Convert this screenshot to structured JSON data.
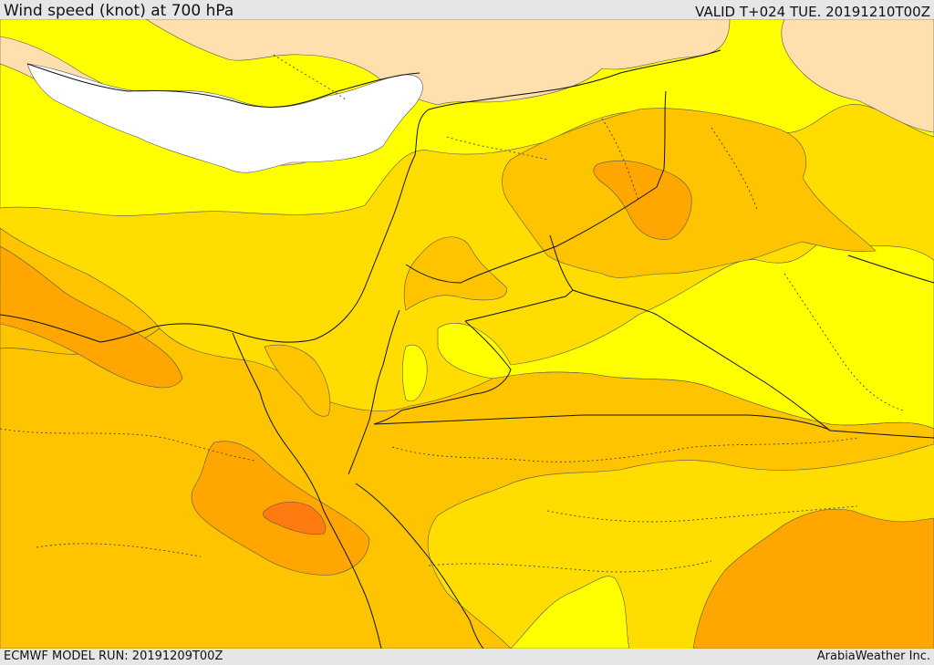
{
  "header": {
    "title": "Wind speed (knot) at 700 hPa",
    "valid": "VALID T+024 TUE. 20191210T00Z"
  },
  "footer": {
    "model_run": "ECMWF MODEL RUN: 20191209T00Z",
    "brand": "ArabiaWeather Inc."
  },
  "map": {
    "parameter": "wind speed",
    "level": "700 hPa",
    "unit": "knot",
    "colors": {
      "weakest": "#ffffff",
      "light": "#ffdfae",
      "yellow": "#ffff00",
      "gold": "#ffdd00",
      "amber": "#ffc400",
      "orange": "#ffa600",
      "strongest": "#ff7a0f"
    }
  }
}
